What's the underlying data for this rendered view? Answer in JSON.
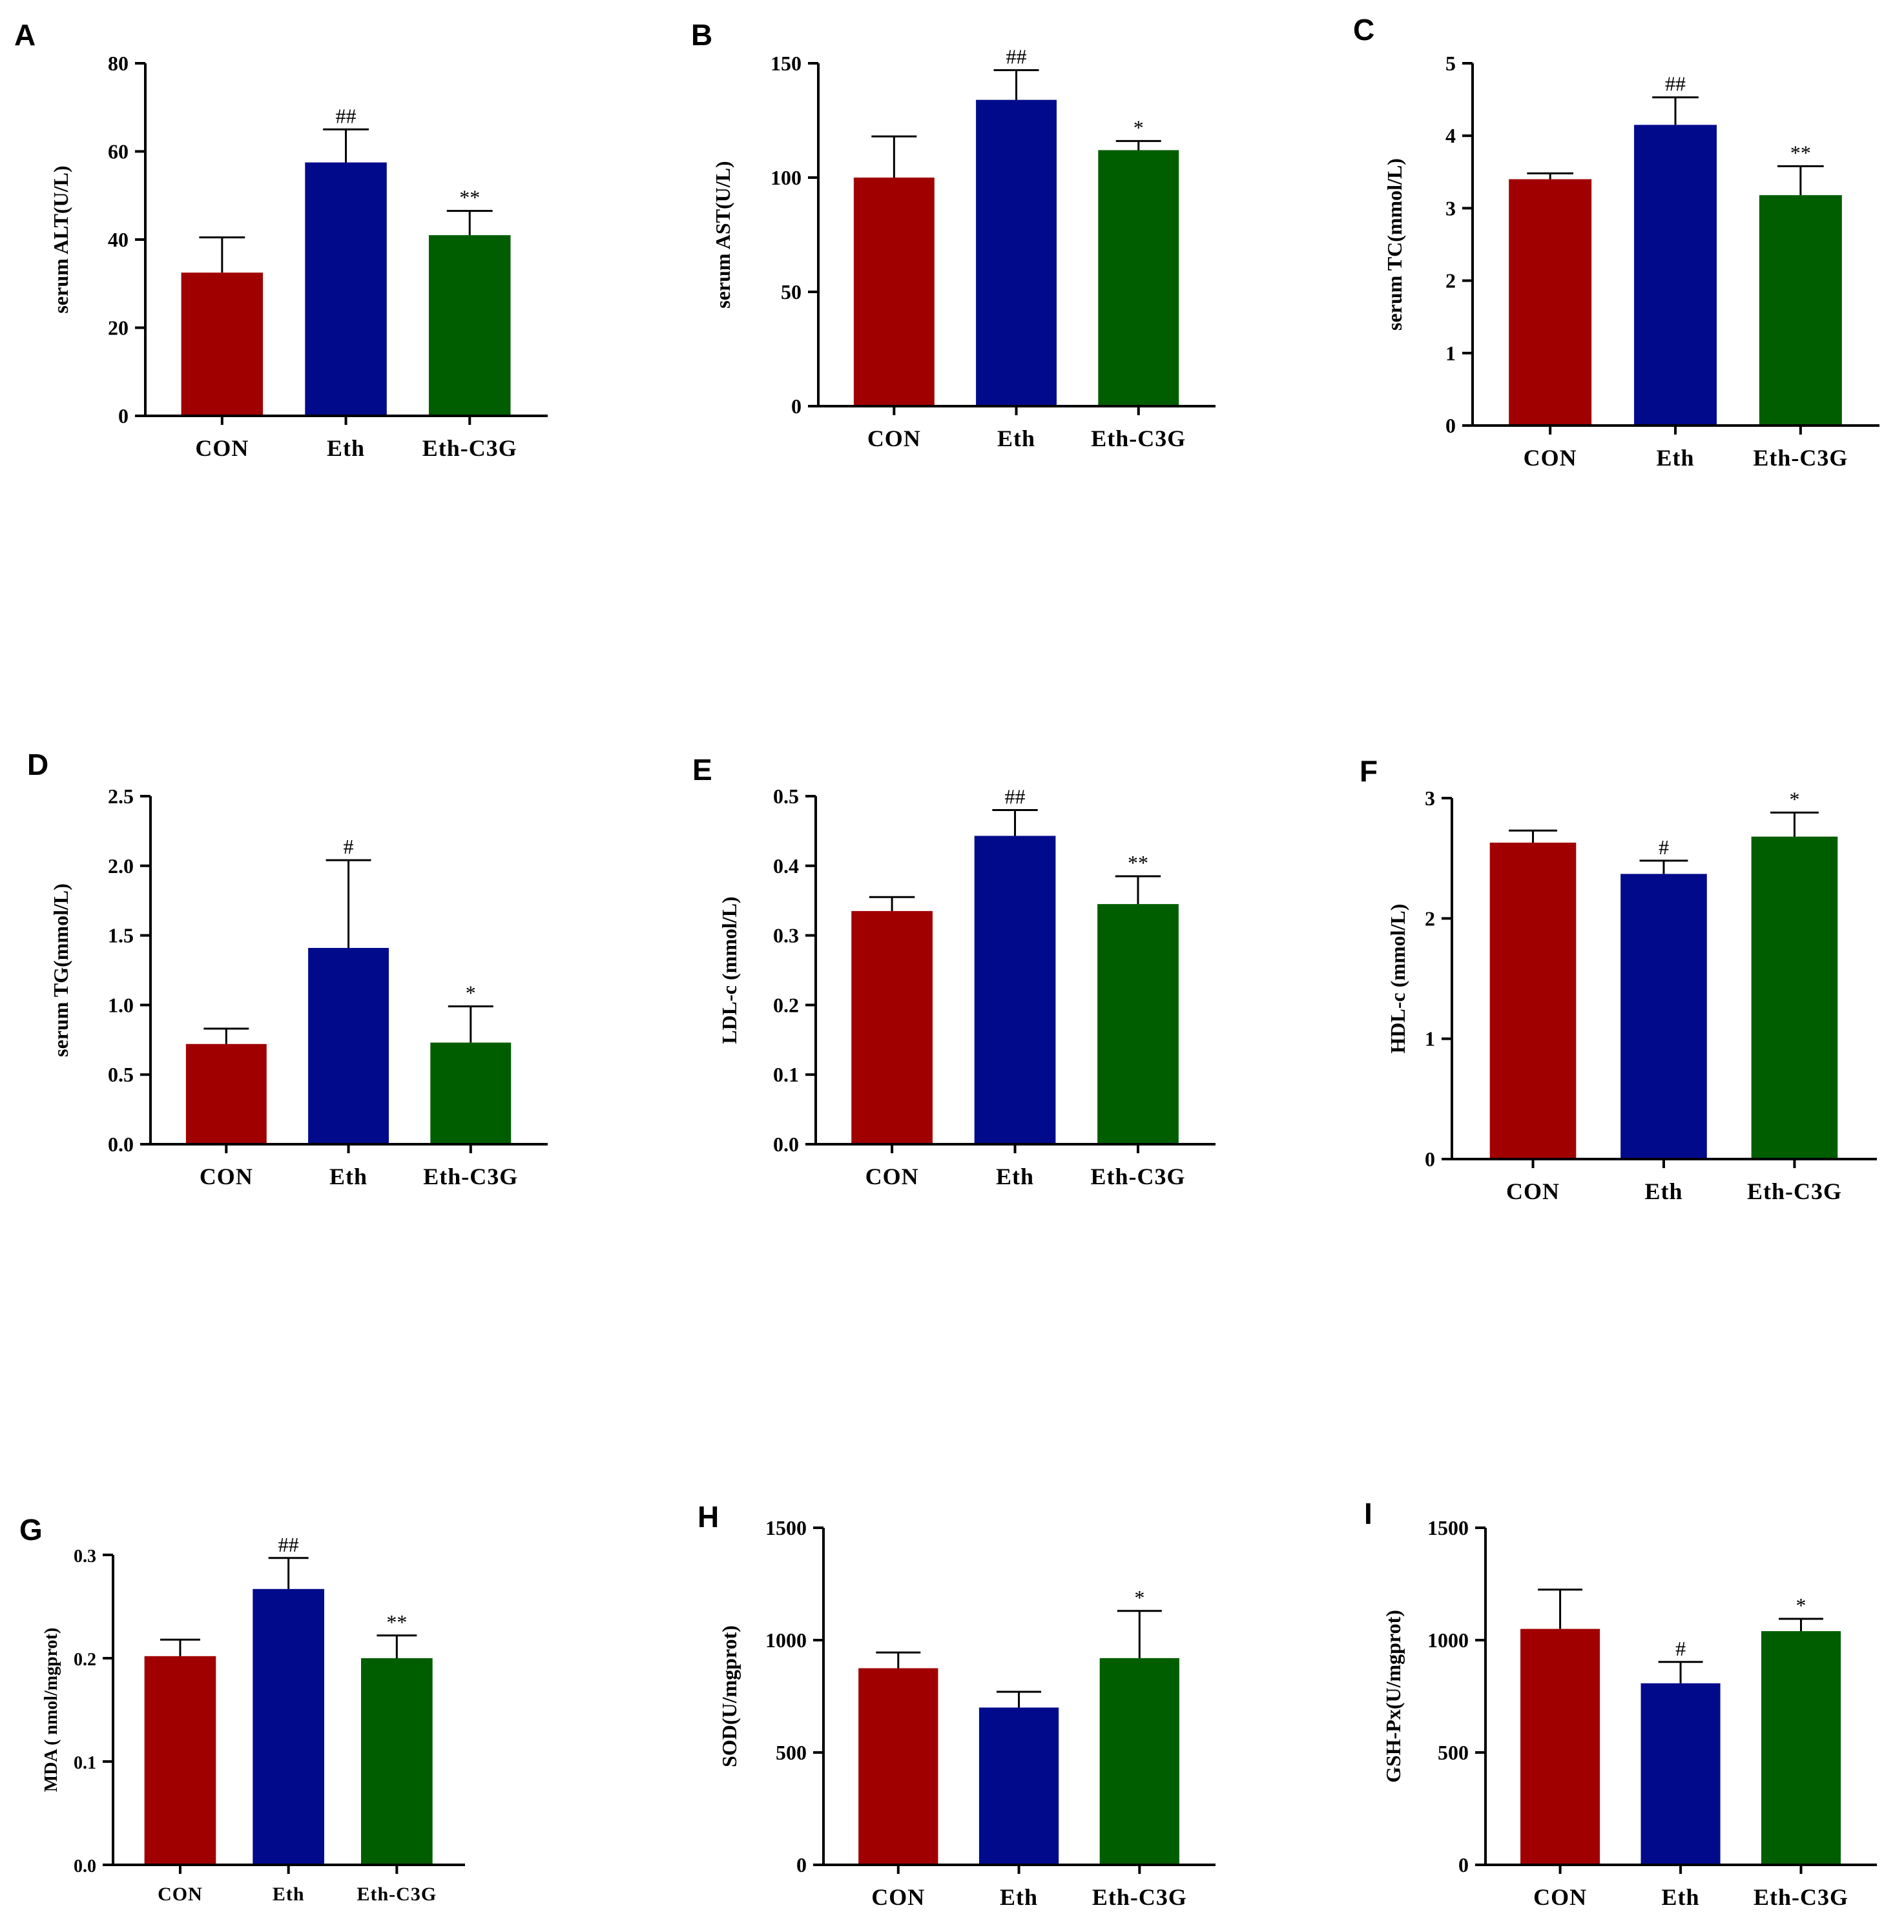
{
  "colors": {
    "CON": "#a10000",
    "Eth": "#020a8c",
    "Eth-C3G": "#005e00",
    "axis": "#000000"
  },
  "chart_data": [
    {
      "type": "bar",
      "panel": "A",
      "categories": [
        "CON",
        "Eth",
        "Eth-C3G"
      ],
      "values": [
        32.5,
        57.5,
        41
      ],
      "errors": [
        8,
        7.5,
        5.5
      ],
      "annotations": [
        "",
        "##",
        "**"
      ],
      "ylabel": "serum ALT(U/L)",
      "ylim": [
        0,
        80
      ],
      "yticks": [
        0,
        20,
        40,
        60,
        80
      ],
      "ytick_labels": [
        "0",
        "20",
        "40",
        "60",
        "80"
      ]
    },
    {
      "type": "bar",
      "panel": "B",
      "categories": [
        "CON",
        "Eth",
        "Eth-C3G"
      ],
      "values": [
        100,
        134,
        112
      ],
      "errors": [
        18,
        13,
        4
      ],
      "annotations": [
        "",
        "##",
        "*"
      ],
      "ylabel": "serum AST(U/L)",
      "ylim": [
        0,
        150
      ],
      "yticks": [
        0,
        50,
        100,
        150
      ],
      "ytick_labels": [
        "0",
        "50",
        "100",
        "150"
      ]
    },
    {
      "type": "bar",
      "panel": "C",
      "categories": [
        "CON",
        "Eth",
        "Eth-C3G"
      ],
      "values": [
        3.4,
        4.15,
        3.18
      ],
      "errors": [
        0.08,
        0.38,
        0.4
      ],
      "annotations": [
        "",
        "##",
        "**"
      ],
      "ylabel": "serum TC(mmol/L)",
      "ylim": [
        0,
        5
      ],
      "yticks": [
        0,
        1,
        2,
        3,
        4,
        5
      ],
      "ytick_labels": [
        "0",
        "1",
        "2",
        "3",
        "4",
        "5"
      ]
    },
    {
      "type": "bar",
      "panel": "D",
      "categories": [
        "CON",
        "Eth",
        "Eth-C3G"
      ],
      "values": [
        0.72,
        1.41,
        0.73
      ],
      "errors": [
        0.11,
        0.63,
        0.26
      ],
      "annotations": [
        "",
        "#",
        "*"
      ],
      "ylabel": "serum TG(mmol/L)",
      "ylim": [
        0,
        2.5
      ],
      "yticks": [
        0,
        0.5,
        1,
        1.5,
        2,
        2.5
      ],
      "ytick_labels": [
        "0.0",
        "0.5",
        "1.0",
        "1.5",
        "2.0",
        "2.5"
      ]
    },
    {
      "type": "bar",
      "panel": "E",
      "categories": [
        "CON",
        "Eth",
        "Eth-C3G"
      ],
      "values": [
        0.335,
        0.443,
        0.345
      ],
      "errors": [
        0.02,
        0.037,
        0.04
      ],
      "annotations": [
        "",
        "##",
        "**"
      ],
      "ylabel": "LDL-c (mmol/L)",
      "ylim": [
        0,
        0.5
      ],
      "yticks": [
        0,
        0.1,
        0.2,
        0.3,
        0.4,
        0.5
      ],
      "ytick_labels": [
        "0.0",
        "0.1",
        "0.2",
        "0.3",
        "0.4",
        "0.5"
      ]
    },
    {
      "type": "bar",
      "panel": "F",
      "categories": [
        "CON",
        "Eth",
        "Eth-C3G"
      ],
      "values": [
        2.63,
        2.37,
        2.68
      ],
      "errors": [
        0.1,
        0.11,
        0.2
      ],
      "annotations": [
        "",
        "#",
        "*"
      ],
      "ylabel": "HDL-c (mmol/L)",
      "ylim": [
        0,
        3
      ],
      "yticks": [
        0,
        1,
        2,
        3
      ],
      "ytick_labels": [
        "0",
        "1",
        "2",
        "3"
      ]
    },
    {
      "type": "bar",
      "panel": "G",
      "categories": [
        "CON",
        "Eth",
        "Eth-C3G"
      ],
      "values": [
        0.202,
        0.267,
        0.2
      ],
      "errors": [
        0.016,
        0.03,
        0.022
      ],
      "annotations": [
        "",
        "##",
        "**"
      ],
      "ylabel": "MDA ( nmol/mgprot)",
      "ylim": [
        0,
        0.3
      ],
      "yticks": [
        0,
        0.1,
        0.2,
        0.3
      ],
      "ytick_labels": [
        "0.0",
        "0.1",
        "0.2",
        "0.3"
      ]
    },
    {
      "type": "bar",
      "panel": "H",
      "categories": [
        "CON",
        "Eth",
        "Eth-C3G"
      ],
      "values": [
        875,
        700,
        920
      ],
      "errors": [
        70,
        70,
        210
      ],
      "annotations": [
        "",
        "",
        "*"
      ],
      "ylabel": "SOD(U/mgprot)",
      "ylim": [
        0,
        1500
      ],
      "yticks": [
        0,
        500,
        1000,
        1500
      ],
      "ytick_labels": [
        "0",
        "500",
        "1000",
        "1500"
      ]
    },
    {
      "type": "bar",
      "panel": "I",
      "categories": [
        "CON",
        "Eth",
        "Eth-C3G"
      ],
      "values": [
        1050,
        808,
        1040
      ],
      "errors": [
        175,
        95,
        55
      ],
      "annotations": [
        "",
        "#",
        "*"
      ],
      "ylabel": "GSH-Px(U/mgprot)",
      "ylim": [
        0,
        1500
      ],
      "yticks": [
        0,
        500,
        1000,
        1500
      ],
      "ytick_labels": [
        "0",
        "500",
        "1000",
        "1500"
      ]
    }
  ]
}
